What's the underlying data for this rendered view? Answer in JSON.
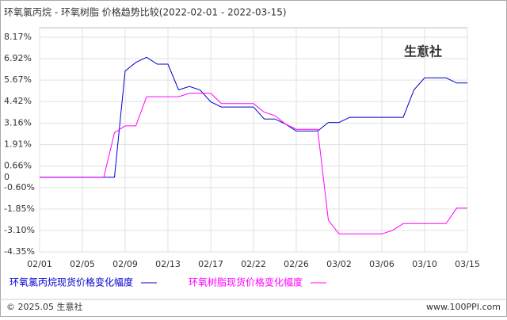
{
  "chart_data": {
    "type": "line",
    "title": "环氧氯丙烷 - 环氧树脂 价格趋势比较(2022-02-01 - 2022-03-15)",
    "categories": [
      "02/01",
      null,
      null,
      null,
      "02/05",
      null,
      null,
      null,
      "02/09",
      null,
      null,
      null,
      "02/13",
      null,
      null,
      null,
      "02/17",
      null,
      null,
      null,
      "02/22",
      null,
      null,
      null,
      "02/26",
      null,
      null,
      null,
      "03/02",
      null,
      null,
      null,
      "03/06",
      null,
      null,
      null,
      "03/10",
      null,
      null,
      null,
      "03/15"
    ],
    "series": [
      {
        "name": "环氧氯丙烷现货价格变化幅度",
        "color": "#0000cc",
        "values": [
          0,
          0,
          0,
          0,
          0,
          0,
          0,
          0,
          6.2,
          6.7,
          7.0,
          6.6,
          6.6,
          5.1,
          5.3,
          5.1,
          4.4,
          4.1,
          4.1,
          4.1,
          4.1,
          3.4,
          3.4,
          3.1,
          2.7,
          2.7,
          2.7,
          3.2,
          3.2,
          3.5,
          3.5,
          3.5,
          3.5,
          3.5,
          3.5,
          5.1,
          5.8,
          5.8,
          5.8,
          5.5,
          5.5
        ]
      },
      {
        "name": "环氧树脂现货价格变化幅度",
        "color": "#ff00ff",
        "values": [
          0,
          0,
          0,
          0,
          0,
          0,
          0,
          2.6,
          3.0,
          3.0,
          4.7,
          4.7,
          4.7,
          4.7,
          4.9,
          4.9,
          4.9,
          4.3,
          4.3,
          4.3,
          4.3,
          3.8,
          3.6,
          3.1,
          2.8,
          2.8,
          2.8,
          -2.5,
          -3.3,
          -3.3,
          -3.3,
          -3.3,
          -3.3,
          -3.1,
          -2.7,
          -2.7,
          -2.7,
          -2.7,
          -2.7,
          -1.8,
          -1.8
        ]
      }
    ],
    "ylim": [
      -4.35,
      8.17
    ],
    "yticks": [
      {
        "value": 8.17,
        "label": "8.17%"
      },
      {
        "value": 6.92,
        "label": "6.92%"
      },
      {
        "value": 5.67,
        "label": "5.67%"
      },
      {
        "value": 4.42,
        "label": "4.42%"
      },
      {
        "value": 3.16,
        "label": "3.16%"
      },
      {
        "value": 1.91,
        "label": "1.91%"
      },
      {
        "value": 0.66,
        "label": "0.66%"
      },
      0,
      {
        "value": -0.6,
        "label": "-0.60%"
      },
      {
        "value": -1.85,
        "label": "-1.85%"
      },
      {
        "value": -3.1,
        "label": "-3.10%"
      },
      {
        "value": -4.35,
        "label": "-4.35%"
      }
    ],
    "grid": true
  },
  "watermark": "生意社",
  "footer": {
    "copyright": "© 2025.05 生意社",
    "site": "www.100PPI.com"
  }
}
